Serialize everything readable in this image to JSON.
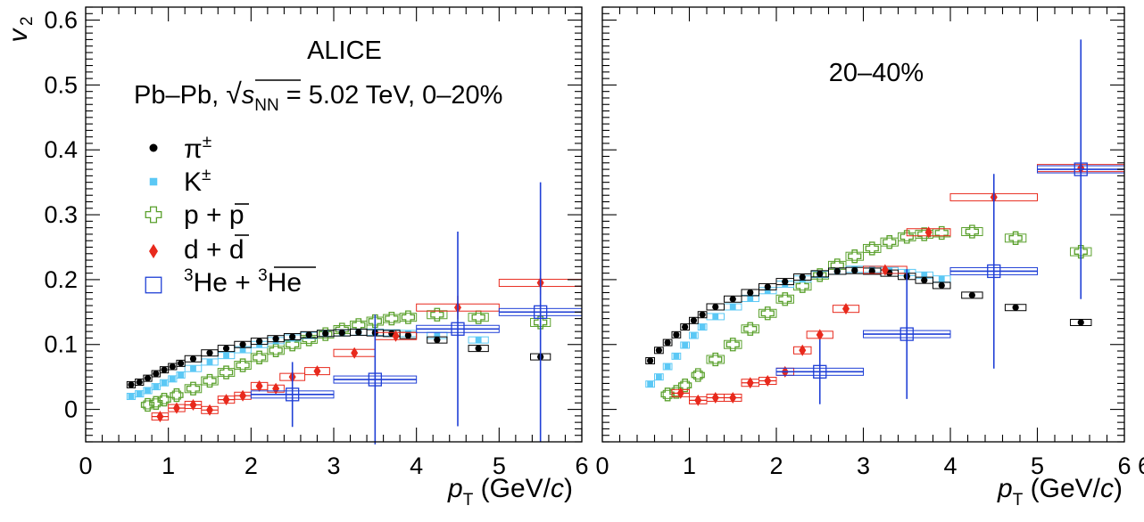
{
  "chart_data": {
    "type": "scatter",
    "ylabel_main": "v",
    "ylabel_sub": "2",
    "xlabel": {
      "main": "p",
      "sub": "T",
      "suffix_pre": " (GeV/",
      "suffix_italic": "c",
      "suffix_post": ")"
    },
    "xlim": [
      0,
      6
    ],
    "ylim": [
      -0.05,
      0.62
    ],
    "xticks": [
      "0",
      "1",
      "2",
      "3",
      "4",
      "5",
      "6"
    ],
    "yticks": [
      "0",
      "0.1",
      "0.2",
      "0.3",
      "0.4",
      "0.5",
      "0.6"
    ],
    "right_x_extra_tick": "6",
    "annotations": {
      "experiment": "ALICE",
      "system_prefix": "Pb–Pb, ",
      "sqrt_symbol": "√",
      "s_letter": "s",
      "s_sub": "NN",
      "system_suffix": " = 5.02 TeV, 0–20%",
      "centrality_right": "20–40%"
    },
    "legend": [
      {
        "key": "pi",
        "base": "π",
        "sup": "±"
      },
      {
        "key": "k",
        "base": "K",
        "sup": "±"
      },
      {
        "key": "p",
        "text": "p + ",
        "bar": "p"
      },
      {
        "key": "d",
        "text": "d + ",
        "bar": "d"
      },
      {
        "key": "he",
        "sup1": "3",
        "t1": "He + ",
        "sup2": "3",
        "bar": "He"
      }
    ],
    "colors": {
      "pi": "#000000",
      "k": "#5bc8f5",
      "p": "#5aa02c",
      "d": "#e8291c",
      "he": "#1f3fd6"
    },
    "panels": [
      {
        "name": "0-20%",
        "series": {
          "pi": [
            [
              0.55,
              0.038
            ],
            [
              0.65,
              0.042
            ],
            [
              0.75,
              0.048
            ],
            [
              0.85,
              0.055
            ],
            [
              0.95,
              0.061
            ],
            [
              1.05,
              0.066
            ],
            [
              1.15,
              0.071
            ],
            [
              1.3,
              0.078
            ],
            [
              1.5,
              0.087
            ],
            [
              1.7,
              0.094
            ],
            [
              1.9,
              0.1
            ],
            [
              2.1,
              0.105
            ],
            [
              2.3,
              0.109
            ],
            [
              2.5,
              0.112
            ],
            [
              2.7,
              0.115
            ],
            [
              2.9,
              0.117
            ],
            [
              3.1,
              0.118
            ],
            [
              3.3,
              0.119
            ],
            [
              3.5,
              0.118
            ],
            [
              3.7,
              0.117
            ],
            [
              3.9,
              0.114
            ],
            [
              4.25,
              0.107
            ],
            [
              4.75,
              0.094
            ],
            [
              5.5,
              0.081
            ]
          ],
          "k": [
            [
              0.55,
              0.02
            ],
            [
              0.65,
              0.024
            ],
            [
              0.75,
              0.029
            ],
            [
              0.85,
              0.035
            ],
            [
              0.95,
              0.041
            ],
            [
              1.05,
              0.047
            ],
            [
              1.15,
              0.053
            ],
            [
              1.3,
              0.063
            ],
            [
              1.5,
              0.073
            ],
            [
              1.7,
              0.083
            ],
            [
              1.9,
              0.092
            ],
            [
              2.1,
              0.1
            ],
            [
              2.3,
              0.106
            ],
            [
              2.5,
              0.11
            ],
            [
              2.7,
              0.114
            ],
            [
              2.9,
              0.117
            ],
            [
              3.1,
              0.118
            ],
            [
              3.3,
              0.119
            ],
            [
              3.5,
              0.119
            ],
            [
              3.7,
              0.118
            ],
            [
              3.9,
              0.117
            ],
            [
              4.25,
              0.114
            ],
            [
              4.75,
              0.107
            ]
          ],
          "p": [
            [
              0.75,
              0.007
            ],
            [
              0.85,
              0.01
            ],
            [
              0.95,
              0.015
            ],
            [
              1.1,
              0.022
            ],
            [
              1.3,
              0.032
            ],
            [
              1.5,
              0.044
            ],
            [
              1.7,
              0.057
            ],
            [
              1.9,
              0.068
            ],
            [
              2.1,
              0.08
            ],
            [
              2.3,
              0.091
            ],
            [
              2.5,
              0.1
            ],
            [
              2.7,
              0.108
            ],
            [
              2.9,
              0.116
            ],
            [
              3.1,
              0.123
            ],
            [
              3.3,
              0.13
            ],
            [
              3.5,
              0.136
            ],
            [
              3.7,
              0.14
            ],
            [
              3.9,
              0.142
            ],
            [
              4.25,
              0.146
            ],
            [
              4.75,
              0.142
            ],
            [
              5.5,
              0.134
            ]
          ],
          "d": [
            [
              0.9,
              -0.011
            ],
            [
              1.1,
              0.002
            ],
            [
              1.3,
              0.007
            ],
            [
              1.5,
              -0.001
            ],
            [
              1.7,
              0.015
            ],
            [
              1.9,
              0.021
            ],
            [
              2.1,
              0.036
            ],
            [
              2.3,
              0.032
            ],
            [
              2.5,
              0.05
            ],
            [
              2.8,
              0.059
            ],
            [
              3.25,
              0.087
            ],
            [
              3.75,
              0.113
            ],
            [
              4.5,
              0.157
            ],
            [
              5.5,
              0.195
            ]
          ],
          "he": [
            [
              2.5,
              0.023
            ],
            [
              3.5,
              0.046
            ],
            [
              4.5,
              0.124
            ],
            [
              5.5,
              0.15
            ]
          ]
        }
      },
      {
        "name": "20-40%",
        "series": {
          "pi": [
            [
              0.55,
              0.075
            ],
            [
              0.65,
              0.091
            ],
            [
              0.75,
              0.103
            ],
            [
              0.85,
              0.115
            ],
            [
              0.95,
              0.127
            ],
            [
              1.05,
              0.137
            ],
            [
              1.15,
              0.146
            ],
            [
              1.3,
              0.158
            ],
            [
              1.5,
              0.17
            ],
            [
              1.7,
              0.18
            ],
            [
              1.9,
              0.189
            ],
            [
              2.1,
              0.197
            ],
            [
              2.3,
              0.204
            ],
            [
              2.5,
              0.209
            ],
            [
              2.7,
              0.213
            ],
            [
              2.9,
              0.214
            ],
            [
              3.1,
              0.213
            ],
            [
              3.3,
              0.21
            ],
            [
              3.5,
              0.205
            ],
            [
              3.7,
              0.199
            ],
            [
              3.9,
              0.191
            ],
            [
              4.25,
              0.176
            ],
            [
              4.75,
              0.157
            ],
            [
              5.5,
              0.134
            ]
          ],
          "k": [
            [
              0.55,
              0.039
            ],
            [
              0.65,
              0.05
            ],
            [
              0.75,
              0.066
            ],
            [
              0.85,
              0.082
            ],
            [
              0.95,
              0.099
            ],
            [
              1.05,
              0.114
            ],
            [
              1.15,
              0.127
            ],
            [
              1.3,
              0.143
            ],
            [
              1.5,
              0.158
            ],
            [
              1.7,
              0.171
            ],
            [
              1.9,
              0.183
            ],
            [
              2.1,
              0.193
            ],
            [
              2.3,
              0.201
            ],
            [
              2.5,
              0.208
            ],
            [
              2.7,
              0.213
            ],
            [
              2.9,
              0.216
            ],
            [
              3.1,
              0.216
            ],
            [
              3.3,
              0.214
            ],
            [
              3.5,
              0.211
            ],
            [
              3.7,
              0.207
            ],
            [
              3.9,
              0.201
            ]
          ],
          "p": [
            [
              0.75,
              0.023
            ],
            [
              0.85,
              0.027
            ],
            [
              0.95,
              0.037
            ],
            [
              1.1,
              0.053
            ],
            [
              1.3,
              0.077
            ],
            [
              1.5,
              0.1
            ],
            [
              1.7,
              0.124
            ],
            [
              1.9,
              0.148
            ],
            [
              2.1,
              0.17
            ],
            [
              2.3,
              0.19
            ],
            [
              2.5,
              0.207
            ],
            [
              2.7,
              0.222
            ],
            [
              2.9,
              0.236
            ],
            [
              3.1,
              0.248
            ],
            [
              3.3,
              0.258
            ],
            [
              3.5,
              0.266
            ],
            [
              3.7,
              0.27
            ],
            [
              3.9,
              0.272
            ],
            [
              4.25,
              0.274
            ],
            [
              4.75,
              0.264
            ],
            [
              5.5,
              0.243
            ]
          ],
          "d": [
            [
              0.9,
              0.025
            ],
            [
              1.1,
              0.014
            ],
            [
              1.3,
              0.018
            ],
            [
              1.5,
              0.018
            ],
            [
              1.7,
              0.041
            ],
            [
              1.9,
              0.044
            ],
            [
              2.1,
              0.058
            ],
            [
              2.3,
              0.091
            ],
            [
              2.5,
              0.115
            ],
            [
              2.8,
              0.155
            ],
            [
              3.25,
              0.215
            ],
            [
              3.75,
              0.273
            ],
            [
              4.5,
              0.327
            ],
            [
              5.5,
              0.372
            ]
          ],
          "he": [
            [
              2.5,
              0.058
            ],
            [
              3.5,
              0.116
            ],
            [
              4.5,
              0.213
            ],
            [
              5.5,
              0.37
            ]
          ]
        }
      }
    ]
  }
}
